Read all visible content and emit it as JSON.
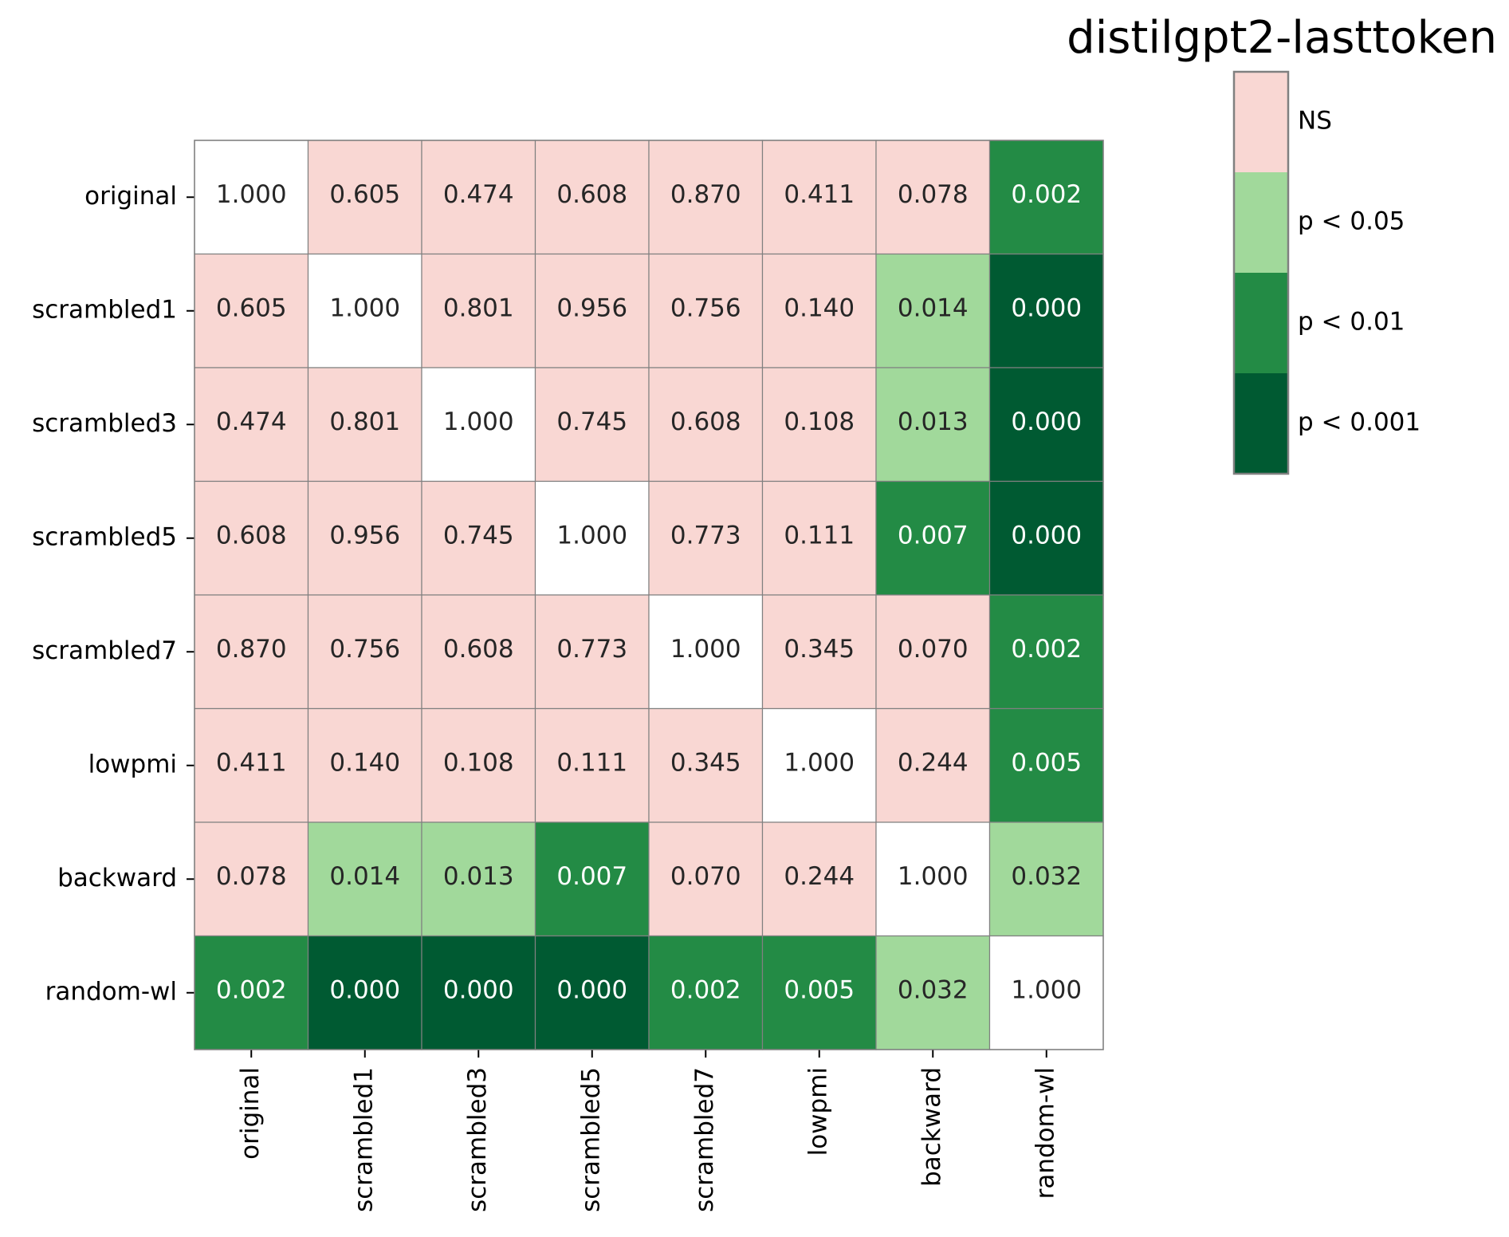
{
  "chart_data": {
    "type": "heatmap",
    "title": "distilgpt2-lasttoken",
    "xlabel": "",
    "ylabel": "",
    "row_labels": [
      "original",
      "scrambled1",
      "scrambled3",
      "scrambled5",
      "scrambled7",
      "lowpmi",
      "backward",
      "random-wl"
    ],
    "col_labels": [
      "original",
      "scrambled1",
      "scrambled3",
      "scrambled5",
      "scrambled7",
      "lowpmi",
      "backward",
      "random-wl"
    ],
    "values": [
      [
        1.0,
        0.605,
        0.474,
        0.608,
        0.87,
        0.411,
        0.078,
        0.002
      ],
      [
        0.605,
        1.0,
        0.801,
        0.956,
        0.756,
        0.14,
        0.014,
        0.0
      ],
      [
        0.474,
        0.801,
        1.0,
        0.745,
        0.608,
        0.108,
        0.013,
        0.0
      ],
      [
        0.608,
        0.956,
        0.745,
        1.0,
        0.773,
        0.111,
        0.007,
        0.0
      ],
      [
        0.87,
        0.756,
        0.608,
        0.773,
        1.0,
        0.345,
        0.07,
        0.002
      ],
      [
        0.411,
        0.14,
        0.108,
        0.111,
        0.345,
        1.0,
        0.244,
        0.005
      ],
      [
        0.078,
        0.014,
        0.013,
        0.007,
        0.07,
        0.244,
        1.0,
        0.032
      ],
      [
        0.002,
        0.0,
        0.0,
        0.0,
        0.002,
        0.005,
        0.032,
        1.0
      ]
    ],
    "value_format": "3 decimals",
    "diagonal_color": "#ffffff",
    "legend": {
      "placement": "top-right",
      "bins": [
        {
          "label": "NS",
          "color": "#f9d7d3",
          "threshold": 0.05,
          "text_color": "#262626"
        },
        {
          "label": "p < 0.05",
          "color": "#a1d99b",
          "threshold": 0.01,
          "text_color": "#262626"
        },
        {
          "label": "p < 0.01",
          "color": "#238b45",
          "threshold": 0.001,
          "text_color": "#ffffff"
        },
        {
          "label": "p < 0.001",
          "color": "#005a32",
          "threshold": 0.0,
          "text_color": "#ffffff"
        }
      ]
    },
    "grid_color": "#808080",
    "grid": true
  }
}
